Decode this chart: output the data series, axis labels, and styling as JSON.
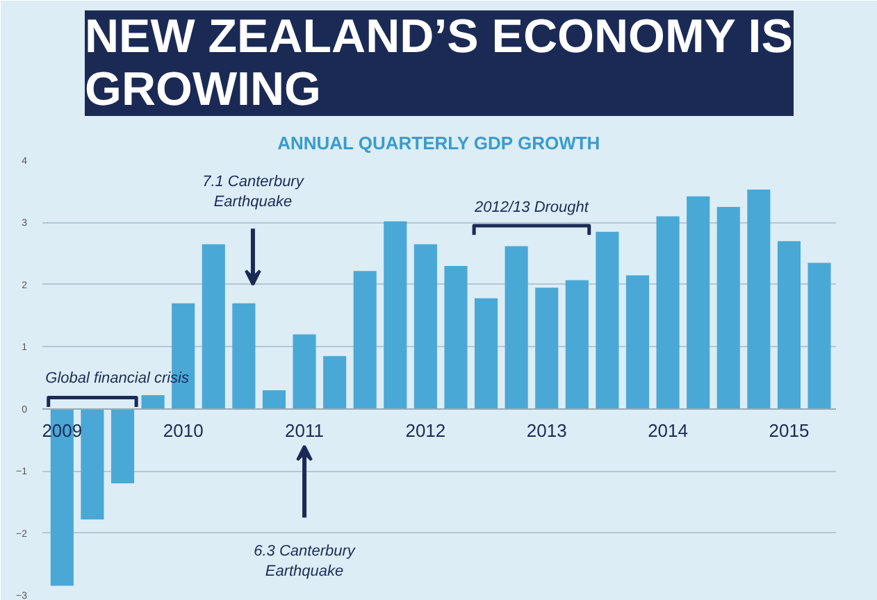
{
  "chart_data": {
    "type": "bar",
    "title": "NEW ZEALAND’S ECONOMY IS GROWING",
    "subtitle": "ANNUAL QUARTERLY GDP GROWTH",
    "categories": [
      "2009",
      null,
      null,
      null,
      "2010",
      null,
      null,
      null,
      "2011",
      null,
      null,
      null,
      "2012",
      null,
      null,
      null,
      "2013",
      null,
      null,
      null,
      "2014",
      null,
      null,
      null,
      "2015",
      null
    ],
    "values": [
      -2.85,
      -1.78,
      -1.2,
      0.22,
      1.7,
      2.65,
      1.7,
      0.3,
      1.2,
      0.85,
      2.22,
      3.02,
      2.65,
      2.3,
      1.78,
      2.62,
      1.95,
      2.07,
      2.85,
      2.15,
      3.1,
      3.42,
      3.25,
      3.53,
      2.7,
      2.35
    ],
    "color": "#4aa8d6",
    "ylim": [
      -3,
      4
    ],
    "yticks": [
      -3,
      -2,
      -1,
      0,
      1,
      2,
      3,
      4
    ],
    "grid": "y",
    "annotations": [
      "7.1 Canterbury Earthquake",
      "6.3 Canterbury Earthquake",
      "Global financial crisis",
      "2012/13 Drought"
    ]
  }
}
